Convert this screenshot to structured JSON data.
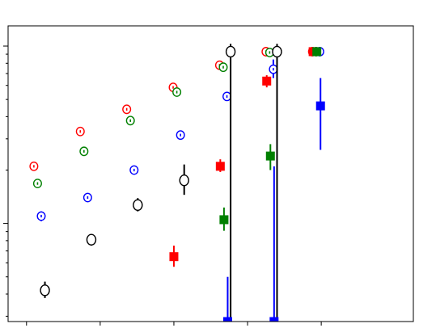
{
  "chart_data": {
    "type": "scatter",
    "x_scale": "linear",
    "y_scale": "log",
    "xlim": [
      0.25,
      5.75
    ],
    "ylim": [
      0.028,
      1.3
    ],
    "grid": false,
    "legend": "none",
    "xticks": [
      0.5,
      1.5,
      2.5,
      3.5,
      4.5
    ],
    "yticks_major": [
      0.1,
      1
    ],
    "series": [
      {
        "color": "#ff0000",
        "marker": "open-circle-dot",
        "points": [
          {
            "x": 0.6,
            "y": 0.21,
            "err_lo": 0.01,
            "err_hi": 0.01
          },
          {
            "x": 1.23,
            "y": 0.33,
            "err_lo": 0.012,
            "err_hi": 0.012
          },
          {
            "x": 1.86,
            "y": 0.44,
            "err_lo": 0.015,
            "err_hi": 0.015
          },
          {
            "x": 2.49,
            "y": 0.585,
            "err_lo": 0.018,
            "err_hi": 0.018
          },
          {
            "x": 3.12,
            "y": 0.78,
            "err_lo": 0.02,
            "err_hi": 0.02
          },
          {
            "x": 3.75,
            "y": 0.93,
            "err_lo": 0.015,
            "err_hi": 0.015
          },
          {
            "x": 4.38,
            "y": 0.93,
            "err_lo": 0.01,
            "err_hi": 0.01
          }
        ]
      },
      {
        "color": "#008000",
        "marker": "open-circle-dot",
        "points": [
          {
            "x": 0.65,
            "y": 0.168,
            "err_lo": 0.008,
            "err_hi": 0.008
          },
          {
            "x": 1.28,
            "y": 0.255,
            "err_lo": 0.01,
            "err_hi": 0.01
          },
          {
            "x": 1.91,
            "y": 0.38,
            "err_lo": 0.012,
            "err_hi": 0.012
          },
          {
            "x": 2.54,
            "y": 0.55,
            "err_lo": 0.015,
            "err_hi": 0.015
          },
          {
            "x": 3.17,
            "y": 0.76,
            "err_lo": 0.02,
            "err_hi": 0.02
          },
          {
            "x": 3.8,
            "y": 0.92,
            "err_lo": 0.015,
            "err_hi": 0.015
          },
          {
            "x": 4.43,
            "y": 0.93,
            "err_lo": 0.01,
            "err_hi": 0.01
          }
        ]
      },
      {
        "color": "#0000ff",
        "marker": "open-circle-dot",
        "points": [
          {
            "x": 0.7,
            "y": 0.11,
            "err_lo": 0.007,
            "err_hi": 0.007
          },
          {
            "x": 1.33,
            "y": 0.14,
            "err_lo": 0.008,
            "err_hi": 0.008
          },
          {
            "x": 1.96,
            "y": 0.2,
            "err_lo": 0.01,
            "err_hi": 0.01
          },
          {
            "x": 2.59,
            "y": 0.315,
            "err_lo": 0.012,
            "err_hi": 0.012
          },
          {
            "x": 3.22,
            "y": 0.52,
            "err_lo": 0.02,
            "err_hi": 0.02
          },
          {
            "x": 3.85,
            "y": 0.74,
            "err_lo": 0.08,
            "err_hi": 0.1
          },
          {
            "x": 4.48,
            "y": 0.93,
            "err_lo": 0.02,
            "err_hi": 0.02
          }
        ]
      },
      {
        "color": "#000000",
        "marker": "open-circle",
        "points": [
          {
            "x": 0.75,
            "y": 0.042,
            "err_lo": 0.004,
            "err_hi": 0.005
          },
          {
            "x": 1.38,
            "y": 0.081,
            "err_lo": 0.006,
            "err_hi": 0.006
          },
          {
            "x": 2.01,
            "y": 0.127,
            "err_lo": 0.01,
            "err_hi": 0.012
          },
          {
            "x": 2.64,
            "y": 0.175,
            "err_lo": 0.03,
            "err_hi": 0.04
          },
          {
            "x": 3.27,
            "y": 0.93,
            "err_lo": 0.905,
            "err_hi": 0.1
          },
          {
            "x": 3.9,
            "y": 0.93,
            "err_lo": 0.905,
            "err_hi": 0.1
          }
        ]
      },
      {
        "color": "#ff0000",
        "marker": "filled-square",
        "points": [
          {
            "x": 2.5,
            "y": 0.065,
            "err_lo": 0.008,
            "err_hi": 0.01
          },
          {
            "x": 3.13,
            "y": 0.21,
            "err_lo": 0.015,
            "err_hi": 0.02
          },
          {
            "x": 3.76,
            "y": 0.635,
            "err_lo": 0.05,
            "err_hi": 0.05
          },
          {
            "x": 4.39,
            "y": 0.93,
            "err_lo": 0.02,
            "err_hi": 0.02
          }
        ]
      },
      {
        "color": "#008000",
        "marker": "filled-square",
        "points": [
          {
            "x": 3.18,
            "y": 0.105,
            "err_lo": 0.014,
            "err_hi": 0.018
          },
          {
            "x": 3.81,
            "y": 0.24,
            "err_lo": 0.04,
            "err_hi": 0.04
          },
          {
            "x": 4.44,
            "y": 0.93,
            "err_lo": 0.05,
            "err_hi": 0.02
          }
        ]
      },
      {
        "color": "#0000ff",
        "marker": "filled-square",
        "points": [
          {
            "x": 3.23,
            "y": 0.028,
            "err_lo": 0.0,
            "err_hi": 0.022
          },
          {
            "x": 3.86,
            "y": 0.028,
            "err_lo": 0.0,
            "err_hi": 0.182
          },
          {
            "x": 4.49,
            "y": 0.46,
            "err_lo": 0.2,
            "err_hi": 0.2
          }
        ]
      }
    ]
  }
}
